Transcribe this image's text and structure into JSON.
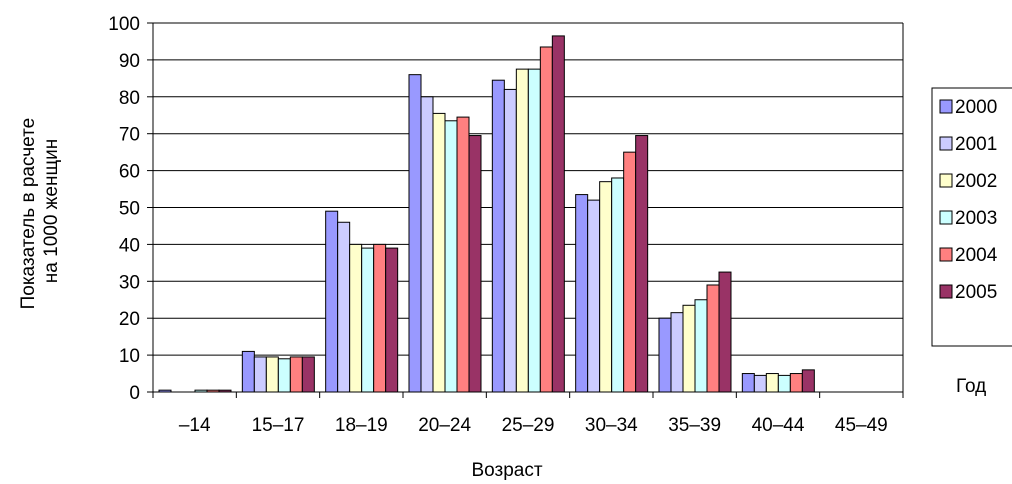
{
  "chart_data": {
    "type": "bar",
    "title": "",
    "xlabel": "Возраст",
    "ylabel_lines": [
      "Показатель в расчете",
      "на 1000 женщин"
    ],
    "ylim": [
      0,
      100
    ],
    "yticks": [
      0,
      10,
      20,
      30,
      40,
      50,
      60,
      70,
      80,
      90,
      100
    ],
    "grid": "horizontal",
    "legend_position": "right",
    "legend_title": "Год",
    "categories": [
      "–14",
      "15–17",
      "18–19",
      "20–24",
      "25–29",
      "30–34",
      "35–39",
      "40–44",
      "45–49"
    ],
    "series": [
      {
        "name": "2000",
        "color": "#9999FF",
        "values": [
          0.5,
          11,
          49,
          86,
          84.5,
          53.5,
          20,
          5,
          0
        ]
      },
      {
        "name": "2001",
        "color": "#CCCCFF",
        "values": [
          0,
          9.5,
          46,
          80,
          82,
          52,
          21.5,
          4.5,
          0
        ]
      },
      {
        "name": "2002",
        "color": "#FFFFCC",
        "values": [
          0,
          9.5,
          40,
          75.5,
          87.5,
          57,
          23.5,
          5,
          0
        ]
      },
      {
        "name": "2003",
        "color": "#CCFFFF",
        "values": [
          0.5,
          9,
          39,
          73.5,
          87.5,
          58,
          25,
          4.5,
          0
        ]
      },
      {
        "name": "2004",
        "color": "#FF8080",
        "values": [
          0.5,
          9.5,
          40,
          74.5,
          93.5,
          65,
          29,
          5,
          0
        ]
      },
      {
        "name": "2005",
        "color": "#993366",
        "values": [
          0.5,
          9.5,
          39,
          69.5,
          96.5,
          69.5,
          32.5,
          6,
          0
        ]
      }
    ]
  }
}
